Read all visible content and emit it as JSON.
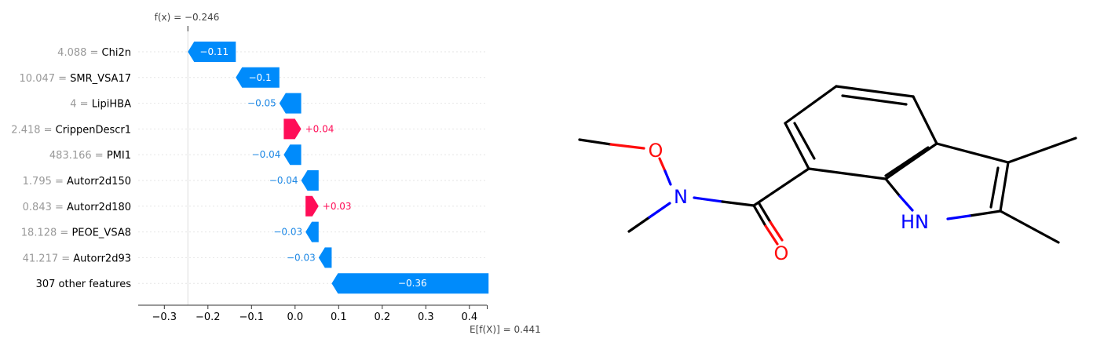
{
  "chart_data": {
    "type": "waterfall",
    "fx_label": "f(x) = −0.246",
    "fx_value": -0.246,
    "expected_label": "E[f(X)] = 0.441",
    "expected_value": 0.441,
    "xlim": [
      -0.36,
      0.44
    ],
    "xticks": [
      -0.3,
      -0.2,
      -0.1,
      0.0,
      0.1,
      0.2,
      0.3,
      0.4
    ],
    "xtick_labels": [
      "−0.3",
      "−0.2",
      "−0.1",
      "0.0",
      "0.1",
      "0.2",
      "0.3",
      "0.4"
    ],
    "colors": {
      "positive": "#ff0d57",
      "negative": "#008bfb",
      "positive_text": "#ff0d57",
      "negative_text": "#1e88e5"
    },
    "features": [
      {
        "value": "4.088",
        "name": "Chi2n",
        "shap": -0.11,
        "label": "−0.11"
      },
      {
        "value": "10.047",
        "name": "SMR_VSA17",
        "shap": -0.1,
        "label": "−0.1"
      },
      {
        "value": "4",
        "name": "LipiHBA",
        "shap": -0.05,
        "label": "−0.05"
      },
      {
        "value": "2.418",
        "name": "CrippenDescr1",
        "shap": 0.04,
        "label": "+0.04"
      },
      {
        "value": "483.166",
        "name": "PMI1",
        "shap": -0.04,
        "label": "−0.04"
      },
      {
        "value": "1.795",
        "name": "Autorr2d150",
        "shap": -0.04,
        "label": "−0.04"
      },
      {
        "value": "0.843",
        "name": "Autorr2d180",
        "shap": 0.03,
        "label": "+0.03"
      },
      {
        "value": "18.128",
        "name": "PEOE_VSA8",
        "shap": -0.03,
        "label": "−0.03"
      },
      {
        "value": "41.217",
        "name": "Autorr2d93",
        "shap": -0.03,
        "label": "−0.03"
      },
      {
        "value": "",
        "name": "307 other features",
        "shap": -0.36,
        "label": "−0.36"
      }
    ]
  },
  "molecule": {
    "atoms": {
      "o_ether": "O",
      "n_amide": "N",
      "o_carbonyl": "O",
      "nh": "HN"
    },
    "colors": {
      "bond": "#000000",
      "oxygen": "#ff0d0d",
      "nitrogen": "#0000ff"
    }
  }
}
